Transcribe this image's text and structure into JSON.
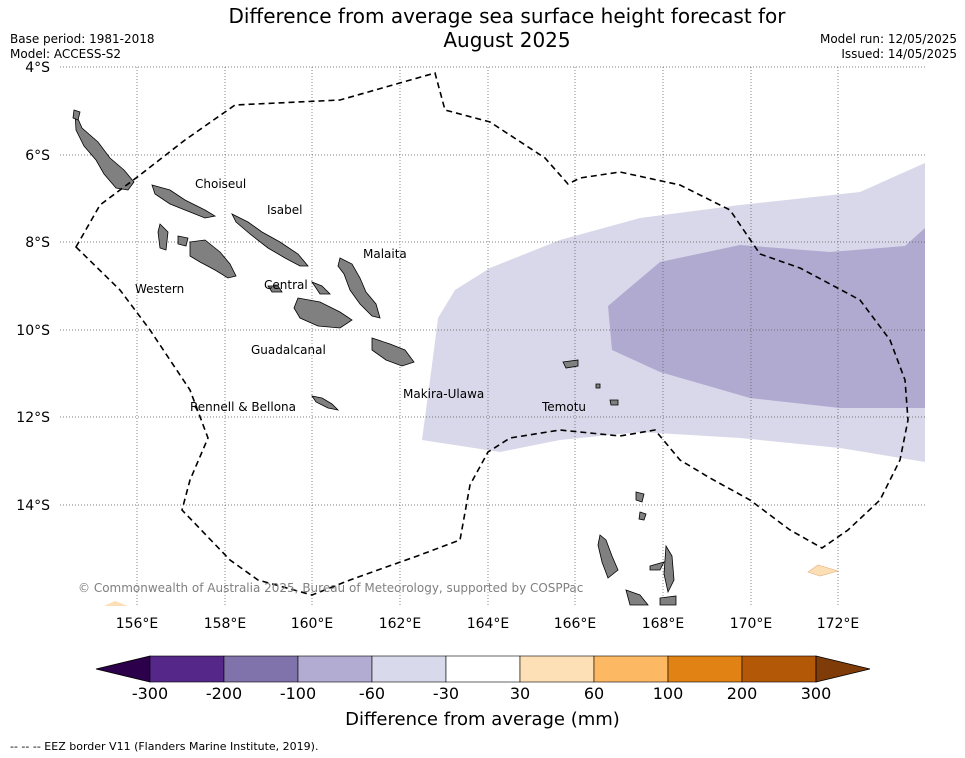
{
  "title": "Difference from average sea surface height forecast for",
  "title_line2": "August 2025",
  "meta_left": {
    "base_period": "Base period: 1981-2018",
    "model": "Model: ACCESS-S2"
  },
  "meta_right": {
    "model_run": "Model run: 12/05/2025",
    "issued": "Issued: 14/05/2025"
  },
  "map": {
    "lat_labels": [
      "4°S",
      "6°S",
      "8°S",
      "10°S",
      "12°S",
      "14°S"
    ],
    "lon_labels": [
      "156°E",
      "158°E",
      "160°E",
      "162°E",
      "164°E",
      "166°E",
      "168°E",
      "170°E",
      "172°E"
    ],
    "region_labels": {
      "choiseul": "Choiseul",
      "isabel": "Isabel",
      "malaita": "Malaita",
      "western": "Western",
      "central": "Central",
      "guadalcanal": "Guadalcanal",
      "makira": "Makira-Ulawa",
      "rennell": "Rennell & Bellona",
      "temotu": "Temotu"
    },
    "copyright": "© Commonwealth of Australia 2025, Bureau of Meteorology, supported by COSPPac",
    "colors": {
      "land": "#808080",
      "anomaly_light": "#d8d8ea",
      "anomaly_mid": "#b0aad0",
      "anomaly_positive": "#fddfb5"
    }
  },
  "colorbar": {
    "ticks": [
      "-300",
      "-200",
      "-100",
      "-60",
      "-30",
      "30",
      "60",
      "100",
      "200",
      "300"
    ],
    "colors": [
      "#2d004b",
      "#542788",
      "#8073ac",
      "#b2abd2",
      "#d8daeb",
      "#ffffff",
      "#fee0b6",
      "#fdb863",
      "#e08214",
      "#b35806",
      "#7f3b08"
    ],
    "label": "Difference from average (mm)"
  },
  "footer": "--  --  -- EEZ border V11 (Flanders Marine Institute, 2019)."
}
